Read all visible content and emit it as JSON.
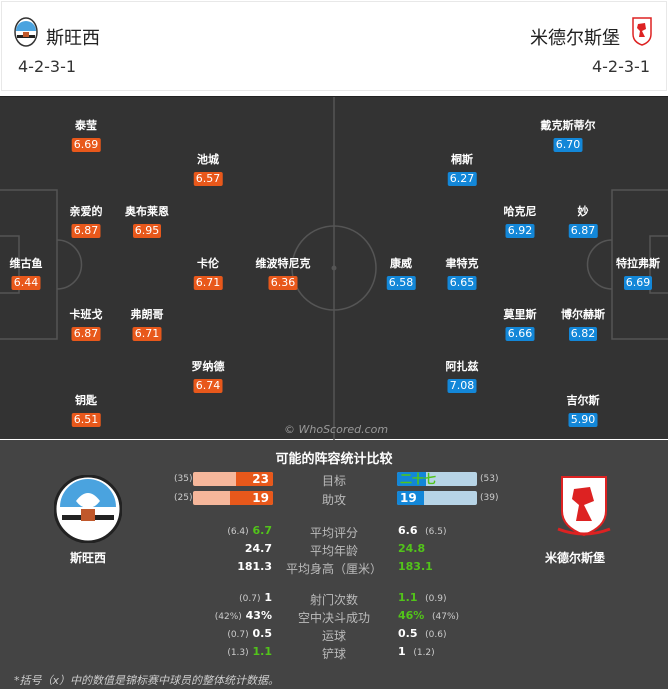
{
  "home": {
    "name": "斯旺西",
    "formation": "4-2-3-1",
    "color": "#e8581b",
    "players": [
      {
        "name": "泰莹",
        "rating": "6.69"
      },
      {
        "name": "池城",
        "rating": "6.57"
      },
      {
        "name": "亲爱的",
        "rating": "6.87"
      },
      {
        "name": "奥布莱恩",
        "rating": "6.95"
      },
      {
        "name": "维古鱼",
        "rating": "6.44"
      },
      {
        "name": "卡伦",
        "rating": "6.71"
      },
      {
        "name": "维波特尼克",
        "rating": "6.36"
      },
      {
        "name": "卡班戈",
        "rating": "6.87"
      },
      {
        "name": "弗朗哥",
        "rating": "6.71"
      },
      {
        "name": "罗纳德",
        "rating": "6.74"
      },
      {
        "name": "钥匙",
        "rating": "6.51"
      }
    ]
  },
  "away": {
    "name": "米德尔斯堡",
    "formation": "4-2-3-1",
    "color": "#1387d8",
    "players": [
      {
        "name": "戴克斯蒂尔",
        "rating": "6.70"
      },
      {
        "name": "桐斯",
        "rating": "6.27"
      },
      {
        "name": "哈克尼",
        "rating": "6.92"
      },
      {
        "name": "妙",
        "rating": "6.87"
      },
      {
        "name": "康威",
        "rating": "6.58"
      },
      {
        "name": "聿特克",
        "rating": "6.65"
      },
      {
        "name": "特拉弗斯",
        "rating": "6.69"
      },
      {
        "name": "莫里斯",
        "rating": "6.66"
      },
      {
        "name": "博尔赫斯",
        "rating": "6.82"
      },
      {
        "name": "阿扎兹",
        "rating": "7.08"
      },
      {
        "name": "吉尔斯",
        "rating": "5.90"
      }
    ]
  },
  "watermark": "© WhoScored.com",
  "stats": {
    "title": "可能的阵容统计比较",
    "bars": [
      {
        "label": "目标",
        "home": "23",
        "home_avg": "(35)",
        "home_value": 23,
        "away": "二十七",
        "away_avg": "(53)",
        "away_value": 27
      },
      {
        "label": "助攻",
        "home": "19",
        "home_avg": "(25)",
        "home_value": 19,
        "away": "19",
        "away_avg": "(39)",
        "away_value": 19
      }
    ],
    "rows": [
      {
        "label": "平均评分",
        "home": "6.7",
        "home_avg": "(6.4)",
        "away": "6.6",
        "away_avg": "(6.5)",
        "better": "home"
      },
      {
        "label": "平均年龄",
        "home": "24.7",
        "home_avg": "",
        "away": "24.8",
        "away_avg": "",
        "better": "away"
      },
      {
        "label": "平均身高（厘米）",
        "home": "181.3",
        "home_avg": "",
        "away": "183.1",
        "away_avg": "",
        "better": "away"
      },
      {
        "label": "射门次数",
        "home": "1",
        "home_avg": "(0.7)",
        "away": "1.1",
        "away_avg": "(0.9)",
        "better": "away"
      },
      {
        "label": "空中决斗成功",
        "home": "43%",
        "home_avg": "(42%)",
        "away": "46%",
        "away_avg": "(47%)",
        "better": "away"
      },
      {
        "label": "运球",
        "home": "0.5",
        "home_avg": "(0.7)",
        "away": "0.5",
        "away_avg": "(0.6)",
        "better": ""
      },
      {
        "label": "铲球",
        "home": "1.1",
        "home_avg": "(1.3)",
        "away": "1",
        "away_avg": "(1.2)",
        "better": "home"
      }
    ],
    "note": "*括号（x）中的数值是锦标赛中球员的整体统计数据。"
  }
}
